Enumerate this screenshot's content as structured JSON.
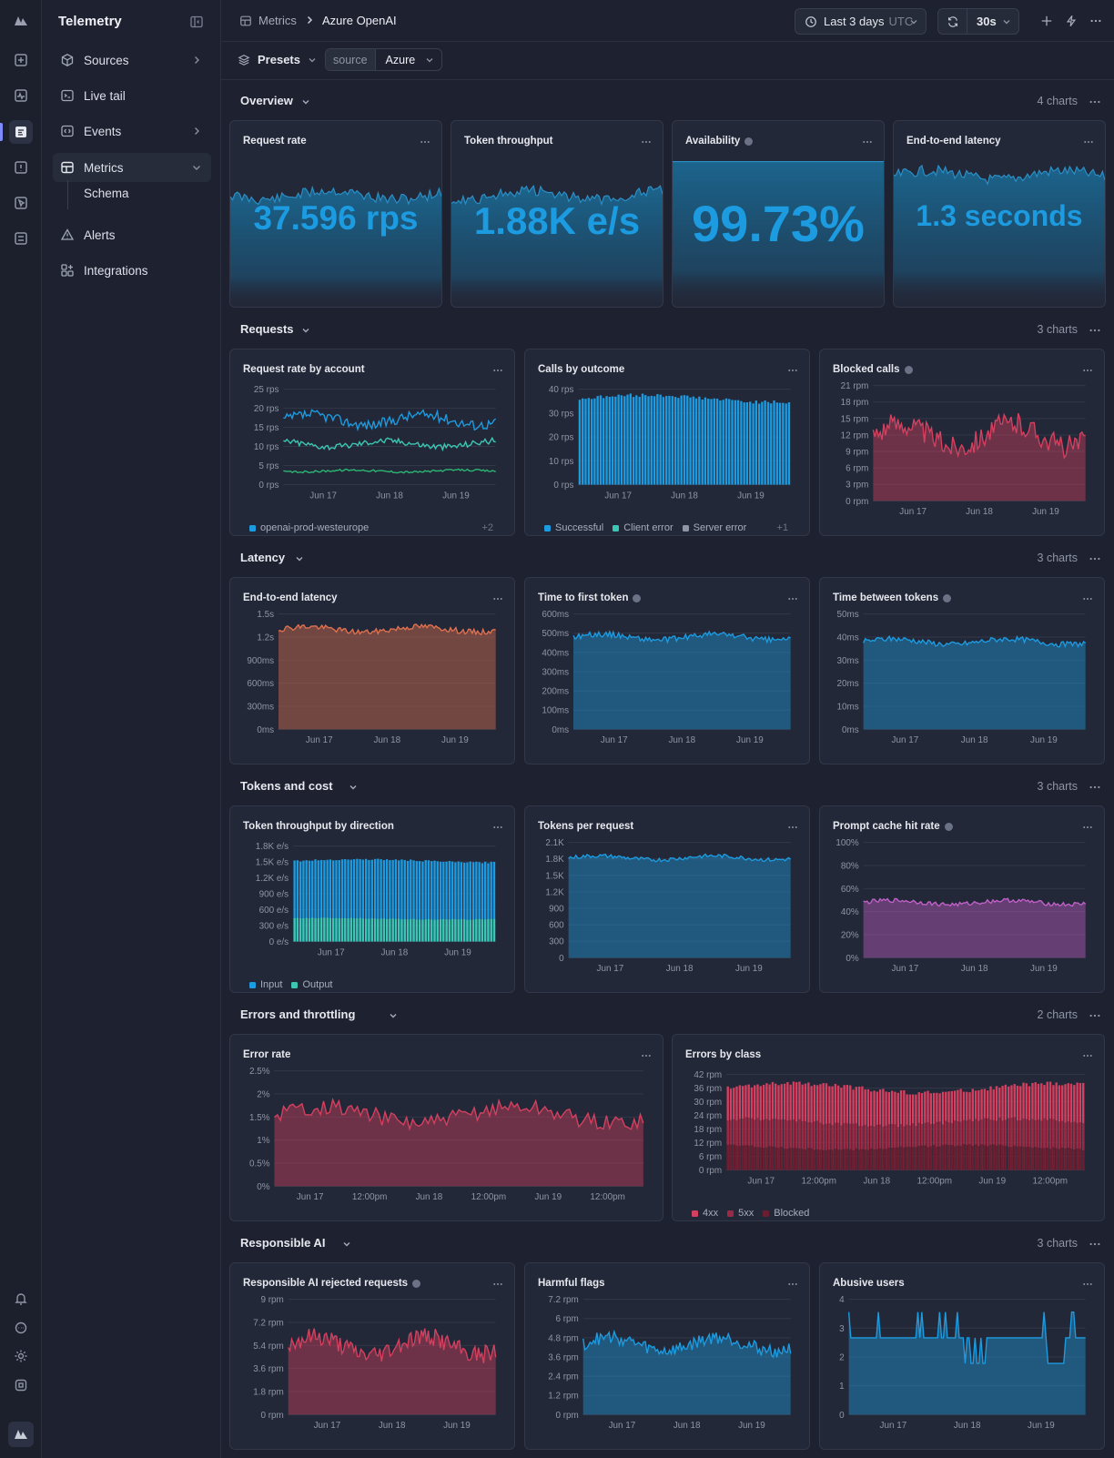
{
  "sidebar": {
    "title": "Telemetry",
    "items": [
      {
        "label": "Sources",
        "icon": "cube-icon"
      },
      {
        "label": "Live tail",
        "icon": "terminal-icon"
      },
      {
        "label": "Events",
        "icon": "code-icon"
      },
      {
        "label": "Metrics",
        "icon": "grid-icon"
      },
      {
        "label": "Alerts",
        "icon": "warning-icon"
      },
      {
        "label": "Integrations",
        "icon": "integrations-icon"
      }
    ],
    "sub_item": "Schema"
  },
  "topbar": {
    "breadcrumb_root": "Metrics",
    "breadcrumb_current": "Azure OpenAI",
    "time_range": "Last 3 days",
    "timezone": "UTC",
    "refresh_interval": "30s"
  },
  "filters": {
    "presets_label": "Presets",
    "source_key": "source",
    "source_value": "Azure"
  },
  "colors": {
    "blue": "#1c9be0",
    "teal": "#3cc7b4",
    "green": "#2bb673",
    "orange": "#e0714f",
    "red": "#d4405f",
    "purple": "#c060c8"
  },
  "sections": [
    {
      "title": "Overview",
      "count": "4 charts"
    },
    {
      "title": "Requests",
      "count": "3 charts"
    },
    {
      "title": "Latency",
      "count": "3 charts"
    },
    {
      "title": "Tokens and cost",
      "count": "3 charts"
    },
    {
      "title": "Errors and throttling",
      "count": "2 charts"
    },
    {
      "title": "Responsible AI",
      "count": "3 charts"
    }
  ],
  "stats": [
    {
      "title": "Request rate",
      "value": "37.596 rps"
    },
    {
      "title": "Token throughput",
      "value": "1.88K e/s"
    },
    {
      "title": "Availability",
      "value": "99.73%"
    },
    {
      "title": "End-to-end latency",
      "value": "1.3 seconds"
    }
  ],
  "chart_data": [
    {
      "id": "rate_by_account",
      "title": "Request rate by account",
      "type": "line",
      "ytick_labels": [
        "0 rps",
        "5 rps",
        "10 rps",
        "15 rps",
        "20 rps",
        "25 rps"
      ],
      "ylim": [
        0,
        28
      ],
      "x_labels": [
        "Jun 17",
        "Jun 18",
        "Jun 19"
      ],
      "series": [
        {
          "name": "openai-prod-westeurope",
          "base": 19,
          "amp": 2.5,
          "color": "#1c9be0"
        },
        {
          "name": "",
          "base": 12,
          "amp": 1.5,
          "color": "#3cc7b4"
        },
        {
          "name": "",
          "base": 4,
          "amp": 0.5,
          "color": "#2bb673"
        }
      ],
      "legend": [
        "openai-prod-westeurope"
      ],
      "legend_more": "+2"
    },
    {
      "id": "calls_by_outcome",
      "title": "Calls by outcome",
      "type": "bar",
      "ytick_labels": [
        "0 rps",
        "10 rps",
        "20 rps",
        "30 rps",
        "40 rps"
      ],
      "ylim": [
        0,
        40
      ],
      "x_labels": [
        "Jun 17",
        "Jun 18",
        "Jun 19"
      ],
      "series": [
        {
          "name": "Successful",
          "base": 36,
          "amp": 1.5,
          "color": "#1c9be0"
        }
      ],
      "legend": [
        "Successful",
        "Client error",
        "Server error"
      ],
      "legend_colors": [
        "#1c9be0",
        "#3cc7b4",
        "#8f95a6"
      ],
      "legend_more": "+1"
    },
    {
      "id": "blocked_calls",
      "title": "Blocked calls",
      "type": "area",
      "ytick_labels": [
        "0 rpm",
        "3 rpm",
        "6 rpm",
        "9 rpm",
        "12 rpm",
        "15 rpm",
        "18 rpm",
        "21 rpm"
      ],
      "ylim": [
        0,
        21
      ],
      "x_labels": [
        "Jun 17",
        "Jun 18",
        "Jun 19"
      ],
      "series": [
        {
          "name": "",
          "base": 12,
          "amp": 3.5,
          "color": "#d4405f"
        }
      ]
    },
    {
      "id": "e2e_latency",
      "title": "End-to-end latency",
      "type": "area",
      "ytick_labels": [
        "0ms",
        "300ms",
        "600ms",
        "900ms",
        "1.2s",
        "1.5s"
      ],
      "ylim": [
        0,
        1500
      ],
      "x_labels": [
        "Jun 17",
        "Jun 18",
        "Jun 19"
      ],
      "series": [
        {
          "name": "",
          "base": 1300,
          "amp": 60,
          "color": "#e0714f"
        }
      ]
    },
    {
      "id": "ttft",
      "title": "Time to first token",
      "type": "area",
      "ytick_labels": [
        "0ms",
        "100ms",
        "200ms",
        "300ms",
        "400ms",
        "500ms",
        "600ms"
      ],
      "ylim": [
        0,
        600
      ],
      "x_labels": [
        "Jun 17",
        "Jun 18",
        "Jun 19"
      ],
      "series": [
        {
          "name": "",
          "base": 480,
          "amp": 25,
          "color": "#1c9be0"
        }
      ]
    },
    {
      "id": "tbt",
      "title": "Time between tokens",
      "type": "area",
      "ytick_labels": [
        "0ms",
        "10ms",
        "20ms",
        "30ms",
        "40ms",
        "50ms"
      ],
      "ylim": [
        0,
        50
      ],
      "x_labels": [
        "Jun 17",
        "Jun 18",
        "Jun 19"
      ],
      "series": [
        {
          "name": "",
          "base": 38,
          "amp": 2,
          "color": "#1c9be0"
        }
      ]
    },
    {
      "id": "tok_by_dir",
      "title": "Token throughput by direction",
      "type": "bar",
      "ytick_labels": [
        "0 e/s",
        "300 e/s",
        "600 e/s",
        "900 e/s",
        "1.2K e/s",
        "1.5K e/s",
        "1.8K e/s"
      ],
      "ylim": [
        0,
        1800
      ],
      "x_labels": [
        "Jun 17",
        "Jun 18",
        "Jun 19"
      ],
      "series": [
        {
          "name": "Input",
          "base": 1520,
          "amp": 30,
          "color": "#1c9be0"
        },
        {
          "name": "Output",
          "base": 430,
          "amp": 15,
          "color": "#3cc7b4"
        }
      ],
      "legend": [
        "Input",
        "Output"
      ],
      "legend_colors": [
        "#1c9be0",
        "#3cc7b4"
      ]
    },
    {
      "id": "tok_per_req",
      "title": "Tokens per request",
      "type": "area",
      "ytick_labels": [
        "0",
        "300",
        "600",
        "900",
        "1.2K",
        "1.5K",
        "1.8K",
        "2.1K"
      ],
      "ylim": [
        0,
        2100
      ],
      "x_labels": [
        "Jun 17",
        "Jun 18",
        "Jun 19"
      ],
      "series": [
        {
          "name": "",
          "base": 1820,
          "amp": 60,
          "color": "#1c9be0"
        }
      ]
    },
    {
      "id": "cache_hit",
      "title": "Prompt cache hit rate",
      "type": "area",
      "ytick_labels": [
        "0%",
        "20%",
        "40%",
        "60%",
        "80%",
        "100%"
      ],
      "ylim": [
        0,
        100
      ],
      "x_labels": [
        "Jun 17",
        "Jun 18",
        "Jun 19"
      ],
      "series": [
        {
          "name": "",
          "base": 48,
          "amp": 3,
          "color": "#c060c8"
        }
      ]
    },
    {
      "id": "error_rate",
      "title": "Error rate",
      "type": "area",
      "ytick_labels": [
        "0%",
        "0.5%",
        "1%",
        "1.5%",
        "2%",
        "2.5%"
      ],
      "ylim": [
        0,
        2.5
      ],
      "x_labels": [
        "Jun 17",
        "12:00pm",
        "Jun 18",
        "12:00pm",
        "Jun 19",
        "12:00pm"
      ],
      "series": [
        {
          "name": "",
          "base": 1.55,
          "amp": 0.3,
          "color": "#d4405f"
        }
      ]
    },
    {
      "id": "errors_by_class",
      "title": "Errors by class",
      "type": "bar",
      "ytick_labels": [
        "0 rpm",
        "6 rpm",
        "12 rpm",
        "18 rpm",
        "24 rpm",
        "30 rpm",
        "36 rpm",
        "42 rpm"
      ],
      "ylim": [
        0,
        42
      ],
      "x_labels": [
        "Jun 17",
        "12:00pm",
        "Jun 18",
        "12:00pm",
        "Jun 19",
        "12:00pm"
      ],
      "series": [
        {
          "name": "4xx",
          "base": 36,
          "amp": 2,
          "color": "#d4405f"
        },
        {
          "name": "5xx",
          "base": 21,
          "amp": 1.5,
          "color": "#9a2a44"
        },
        {
          "name": "Blocked",
          "base": 10,
          "amp": 1,
          "color": "#6b1e30"
        }
      ],
      "legend": [
        "4xx",
        "5xx",
        "Blocked"
      ],
      "legend_colors": [
        "#d4405f",
        "#9a2a44",
        "#6b1e30"
      ]
    },
    {
      "id": "rai_rejected",
      "title": "Responsible AI rejected requests",
      "type": "area",
      "ytick_labels": [
        "0 rpm",
        "1.8 rpm",
        "3.6 rpm",
        "5.4 rpm",
        "7.2 rpm",
        "9 rpm"
      ],
      "ylim": [
        0,
        9
      ],
      "x_labels": [
        "Jun 17",
        "Jun 18",
        "Jun 19"
      ],
      "series": [
        {
          "name": "",
          "base": 5.4,
          "amp": 1.2,
          "color": "#d4405f"
        }
      ]
    },
    {
      "id": "harmful_flags",
      "title": "Harmful flags",
      "type": "area",
      "ytick_labels": [
        "0 rpm",
        "1.2 rpm",
        "2.4 rpm",
        "3.6 rpm",
        "4.8 rpm",
        "6 rpm",
        "7.2 rpm"
      ],
      "ylim": [
        0,
        7.2
      ],
      "x_labels": [
        "Jun 17",
        "Jun 18",
        "Jun 19"
      ],
      "series": [
        {
          "name": "",
          "base": 4.4,
          "amp": 0.7,
          "color": "#1c9be0"
        }
      ]
    },
    {
      "id": "abusive_users",
      "title": "Abusive users",
      "type": "area",
      "ytick_labels": [
        "0",
        "1",
        "2",
        "3",
        "4"
      ],
      "ylim": [
        0,
        4.5
      ],
      "x_labels": [
        "Jun 17",
        "Jun 18",
        "Jun 19"
      ],
      "series": [
        {
          "name": "",
          "base": 3,
          "amp": 0.5,
          "color": "#1c9be0"
        }
      ]
    }
  ]
}
